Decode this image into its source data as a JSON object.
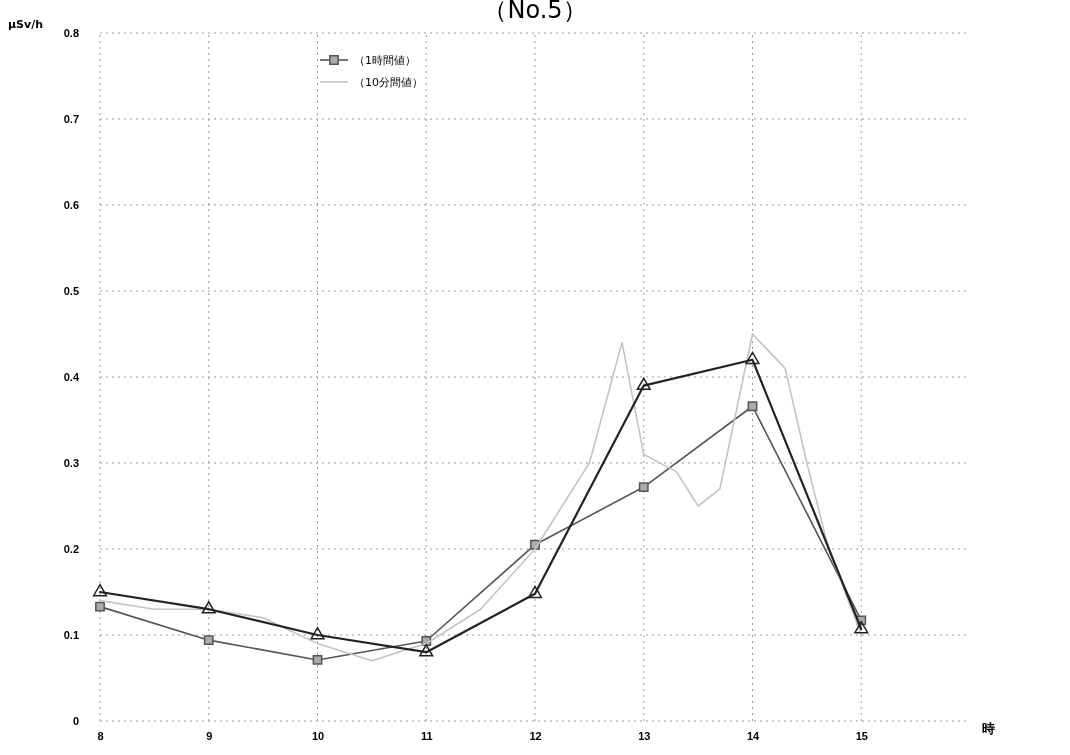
{
  "chart_data": {
    "type": "line",
    "title": "（No.5）",
    "ylabel": "μSv/h",
    "xlabel": "時",
    "xlim": [
      8,
      16
    ],
    "xticks": [
      8,
      9,
      10,
      11,
      12,
      13,
      14,
      15
    ],
    "ylim": [
      0,
      0.8
    ],
    "yticks": [
      0,
      0.1,
      0.2,
      0.3,
      0.4,
      0.5,
      0.6,
      0.7,
      0.8
    ],
    "grid": true,
    "legend": "top left",
    "line_style": "solid",
    "series": [
      {
        "name": "（1時間値）",
        "color": "#555555",
        "marker": "square",
        "x": [
          8,
          9,
          10,
          11,
          12,
          13,
          14,
          15
        ],
        "values": [
          0.133,
          0.094,
          0.071,
          0.093,
          0.205,
          0.272,
          0.366,
          0.117
        ]
      },
      {
        "name": "（10分間値）",
        "color": "#c4c4c4",
        "marker": "none",
        "x": [
          8,
          8.5,
          9,
          9.5,
          10,
          10.5,
          11,
          11.5,
          12,
          12.5,
          12.8,
          13,
          13.3,
          13.5,
          13.7,
          14,
          14.3,
          14.5,
          14.7,
          15
        ],
        "values": [
          0.14,
          0.13,
          0.13,
          0.12,
          0.09,
          0.07,
          0.09,
          0.13,
          0.2,
          0.3,
          0.44,
          0.31,
          0.29,
          0.25,
          0.27,
          0.45,
          0.41,
          0.3,
          0.2,
          0.1
        ]
      },
      {
        "color": "#222222",
        "marker": "triangle",
        "x": [
          8,
          9,
          10,
          11,
          12,
          13,
          14,
          15
        ],
        "values": [
          0.15,
          0.13,
          0.1,
          0.08,
          0.148,
          0.39,
          0.42,
          0.107
        ]
      }
    ]
  }
}
